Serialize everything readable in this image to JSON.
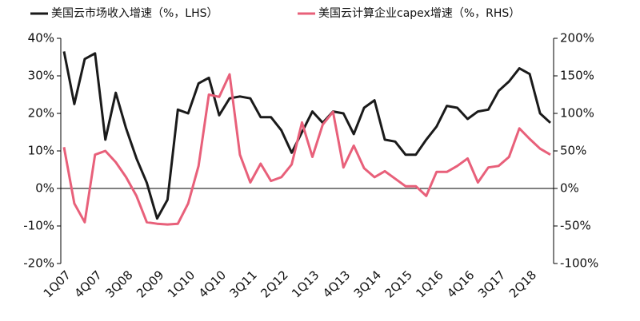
{
  "chart_data": {
    "type": "line",
    "categories": [
      "1Q07",
      null,
      null,
      "4Q07",
      null,
      null,
      "3Q08",
      null,
      null,
      "2Q09",
      null,
      null,
      "1Q10",
      null,
      null,
      "4Q10",
      null,
      null,
      "3Q11",
      null,
      null,
      "2Q12",
      null,
      null,
      "1Q13",
      null,
      null,
      "4Q13",
      null,
      null,
      "3Q14",
      null,
      null,
      "2Q15",
      null,
      null,
      "1Q16",
      null,
      null,
      "4Q16",
      null,
      null,
      "3Q17",
      null,
      null,
      "2Q18",
      null,
      null
    ],
    "series": [
      {
        "name": "美国云市场收入增速（%，LHS）",
        "color": "#1a1a1a",
        "values": [
          36.5,
          22.5,
          34.5,
          36,
          13,
          25.5,
          16,
          8,
          1.5,
          -8,
          -3,
          21,
          20,
          28,
          29.5,
          19.5,
          24,
          24.5,
          24,
          19,
          19,
          15.5,
          9.5,
          15,
          20.5,
          17.5,
          20.5,
          20,
          14.5,
          21.5,
          23.5,
          13,
          12.5,
          9,
          9,
          13,
          16.5,
          22,
          21.5,
          18.5,
          20.5,
          21,
          26,
          28.5,
          32,
          30.5,
          20,
          17.5
        ]
      },
      {
        "name": "美国云计算企业capex增速（%，RHS）",
        "color": "#e8607a",
        "axis": "y2",
        "values": [
          55,
          -20,
          -45,
          45,
          50,
          35,
          15,
          -10,
          -45,
          -47,
          -48,
          -47,
          -20,
          30,
          125,
          122,
          152,
          45,
          8,
          33,
          10,
          15,
          32,
          88,
          42,
          85,
          102,
          28,
          57,
          27,
          15,
          23,
          13,
          3,
          3,
          -10,
          22,
          22,
          30,
          40,
          8,
          28,
          30,
          42,
          80,
          66,
          53,
          45
        ]
      }
    ],
    "ylim": [
      -20,
      40
    ],
    "yticks": [
      {
        "value": -20,
        "label": "-20%"
      },
      {
        "value": -10,
        "label": "-10%"
      },
      {
        "value": 0,
        "label": "0%"
      },
      {
        "value": 10,
        "label": "10%"
      },
      {
        "value": 20,
        "label": "20%"
      },
      {
        "value": 30,
        "label": "30%"
      },
      {
        "value": 40,
        "label": "40%"
      }
    ],
    "y2lim": [
      -100,
      200
    ],
    "y2ticks": [
      {
        "value": -100,
        "label": "-100%"
      },
      {
        "value": -50,
        "label": "-50%"
      },
      {
        "value": 0,
        "label": "0%"
      },
      {
        "value": 50,
        "label": "50%"
      },
      {
        "value": 100,
        "label": "100%"
      },
      {
        "value": 150,
        "label": "150%"
      },
      {
        "value": 200,
        "label": "200%"
      }
    ],
    "legend": "top"
  }
}
